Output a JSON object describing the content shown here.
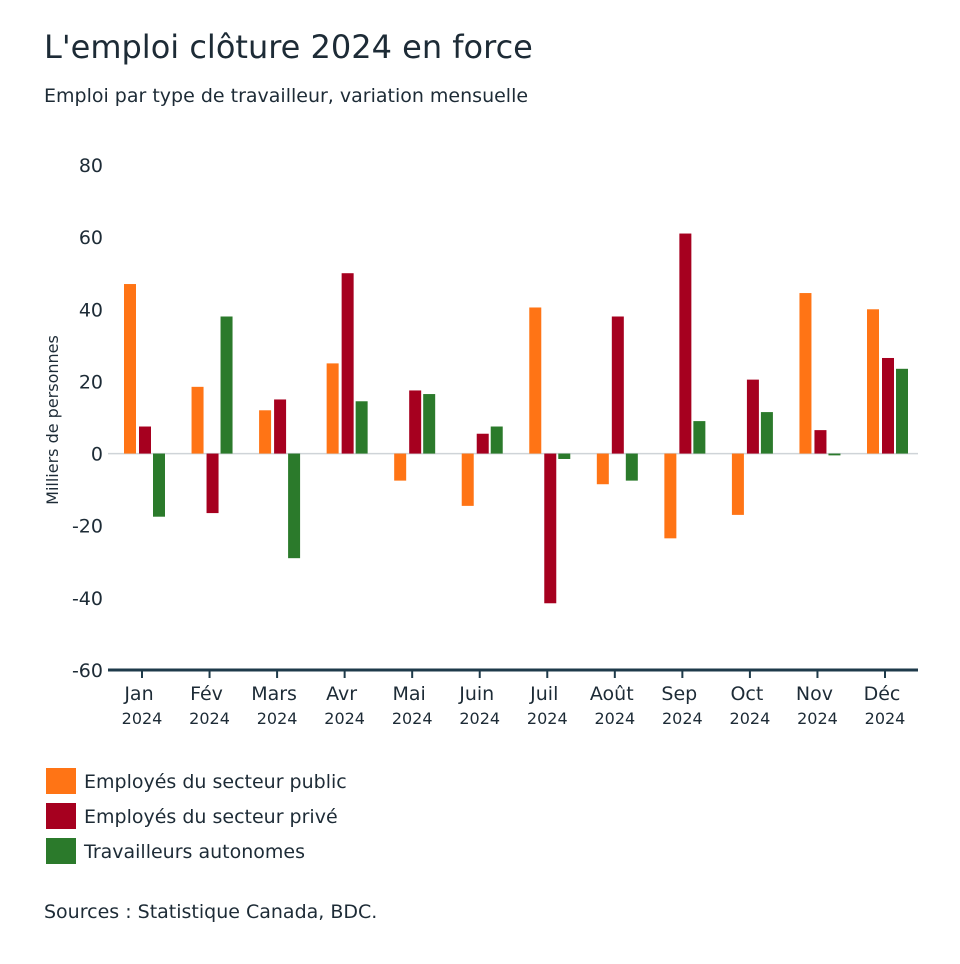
{
  "chart_data": {
    "type": "bar",
    "title": "L'emploi clôture 2024 en force",
    "subtitle": "Emploi par type de travailleur, variation mensuelle",
    "y_label": "Milliers de personnes",
    "source": "Sources : Statistique Canada, BDC.",
    "categories": [
      "Jan 2024",
      "Fév 2024",
      "Mars 2024",
      "Avr 2024",
      "Mai 2024",
      "Juin 2024",
      "Juil 2024",
      "Août 2024",
      "Sep 2024",
      "Oct 2024",
      "Nov 2024",
      "Déc 2024"
    ],
    "series": [
      {
        "name": "Employés du secteur public",
        "color": "#ff7415",
        "values": [
          47,
          18.5,
          12,
          25,
          -7.5,
          -14.5,
          40.5,
          -8.5,
          -23.5,
          -17,
          44.5,
          40
        ]
      },
      {
        "name": "Employés du secteur privé",
        "color": "#a6001f",
        "values": [
          7.5,
          -16.5,
          15,
          50,
          17.5,
          5.5,
          -41.5,
          38,
          61,
          20.5,
          6.5,
          26.5
        ]
      },
      {
        "name": "Travailleurs autonomes",
        "color": "#2b7a2b",
        "values": [
          -17.5,
          38,
          -29,
          14.5,
          16.5,
          7.5,
          -1.5,
          -7.5,
          9,
          11.5,
          -0.5,
          23.5
        ]
      }
    ],
    "ylim": [
      -60,
      80
    ],
    "yticks": [
      -60,
      -40,
      -20,
      0,
      20,
      40,
      60,
      80
    ]
  }
}
